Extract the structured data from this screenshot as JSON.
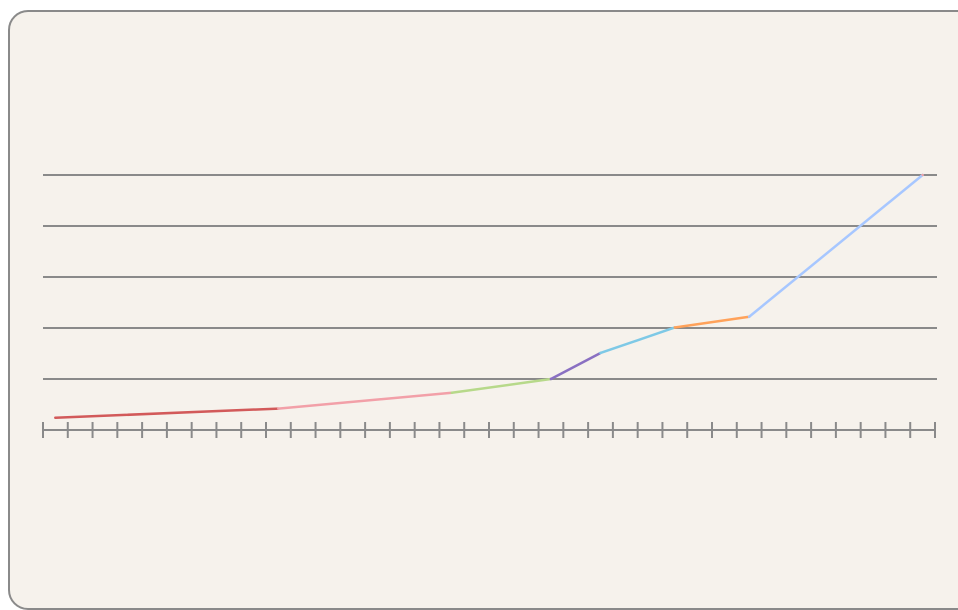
{
  "panel": {
    "background": "#f6f2ec",
    "border_color": "#8a8a8a"
  },
  "chart_data": {
    "type": "line",
    "title": "",
    "xlabel": "",
    "ylabel": "",
    "grid": true,
    "grid_color": "#8a8a8a",
    "axis_color": "#8a8a8a",
    "ylim": [
      0,
      5
    ],
    "xlim": [
      0,
      36
    ],
    "x_tick_count": 37,
    "y_gridlines": [
      1,
      2,
      3,
      4,
      5
    ],
    "series": [
      {
        "x": [
          0.5,
          9.5,
          16.5,
          20.5,
          22.5,
          25.5,
          28.5,
          35.5
        ],
        "values": [
          0.24,
          0.42,
          0.73,
          1.0,
          1.51,
          2.01,
          2.22,
          5.0
        ],
        "colors": [
          "#d25a5a",
          "#f2a0a8",
          "#b7d98a",
          "#8a70c2",
          "#7ec9e6",
          "#ffa25a",
          "#a7c7ff",
          "#f4a3a3"
        ]
      }
    ]
  }
}
